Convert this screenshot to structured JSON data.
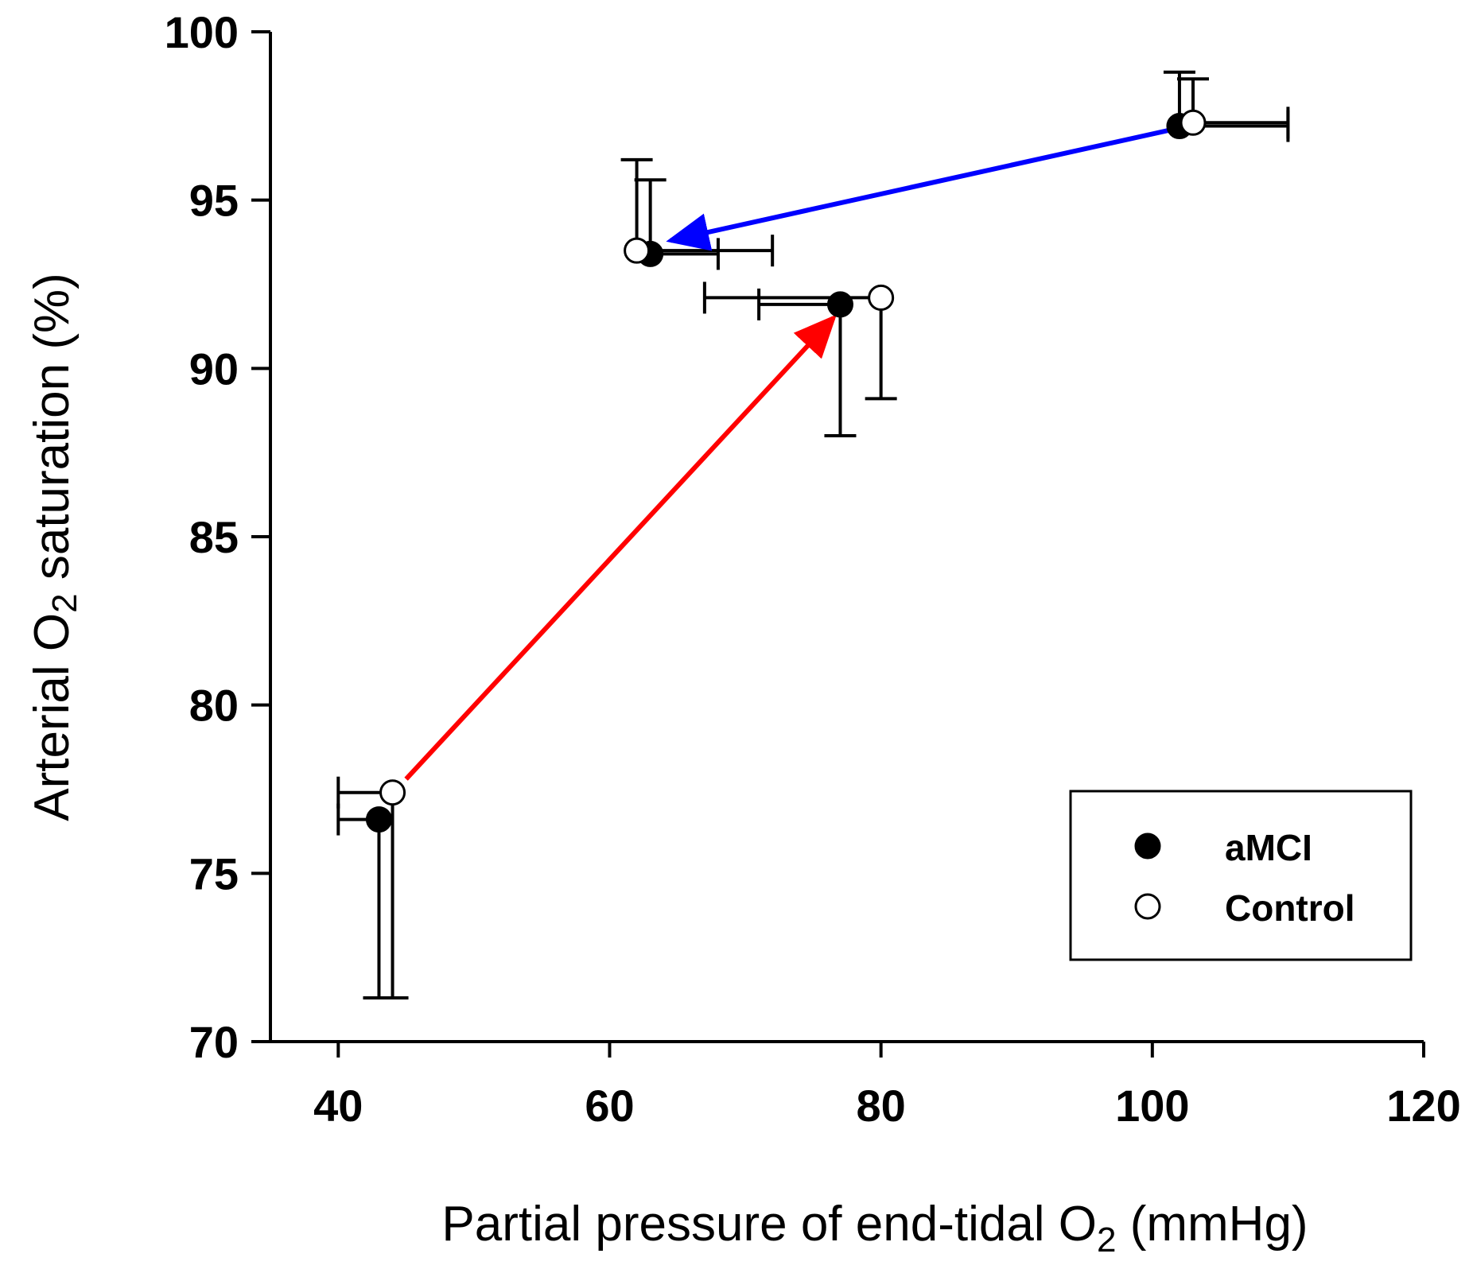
{
  "chart_data": {
    "type": "scatter",
    "title": "",
    "xlabel": {
      "pre": "Partial pressure of end-tidal O",
      "sub": "2",
      "post": " (mmHg)"
    },
    "ylabel": {
      "pre": "Arterial O",
      "sub": "2",
      "post": " saturation (%)"
    },
    "xlim": [
      35,
      120
    ],
    "ylim": [
      70,
      100
    ],
    "xticks": [
      40,
      60,
      80,
      100,
      120
    ],
    "yticks": [
      70,
      75,
      80,
      85,
      90,
      95,
      100
    ],
    "series": [
      {
        "name": "aMCI",
        "marker": "filled-circle",
        "points": [
          {
            "x": 43,
            "y": 76.6,
            "x_err": 3,
            "y_err": 5.3,
            "x_err_dir": "left",
            "y_err_dir": "down"
          },
          {
            "x": 77,
            "y": 91.9,
            "x_err": 6,
            "y_err": 3.9,
            "x_err_dir": "left",
            "y_err_dir": "down"
          },
          {
            "x": 63,
            "y": 93.4,
            "x_err": 5,
            "y_err": 2.2,
            "x_err_dir": "right",
            "y_err_dir": "up"
          },
          {
            "x": 102,
            "y": 97.2,
            "x_err": 8,
            "y_err": 1.6,
            "x_err_dir": "right",
            "y_err_dir": "up"
          }
        ]
      },
      {
        "name": "Control",
        "marker": "open-circle",
        "points": [
          {
            "x": 44,
            "y": 77.4,
            "x_err": 4,
            "y_err": 6.1,
            "x_err_dir": "left",
            "y_err_dir": "down"
          },
          {
            "x": 80,
            "y": 92.1,
            "x_err": 13,
            "y_err": 3.0,
            "x_err_dir": "left",
            "y_err_dir": "down"
          },
          {
            "x": 62,
            "y": 93.5,
            "x_err": 10,
            "y_err": 2.7,
            "x_err_dir": "right",
            "y_err_dir": "up"
          },
          {
            "x": 103,
            "y": 97.3,
            "x_err": 7,
            "y_err": 1.3,
            "x_err_dir": "right",
            "y_err_dir": "up"
          }
        ]
      }
    ],
    "arrows": [
      {
        "name": "red-arrow",
        "color": "#ff0000",
        "from": [
          45,
          77.8
        ],
        "to": [
          76.5,
          91.5
        ]
      },
      {
        "name": "blue-arrow",
        "color": "#0000ff",
        "from": [
          101.5,
          97.1
        ],
        "to": [
          64.5,
          93.8
        ]
      }
    ],
    "legend": {
      "position": "bottom-right",
      "entries": [
        {
          "label": "aMCI",
          "marker": "filled-circle"
        },
        {
          "label": "Control",
          "marker": "open-circle"
        }
      ]
    }
  }
}
